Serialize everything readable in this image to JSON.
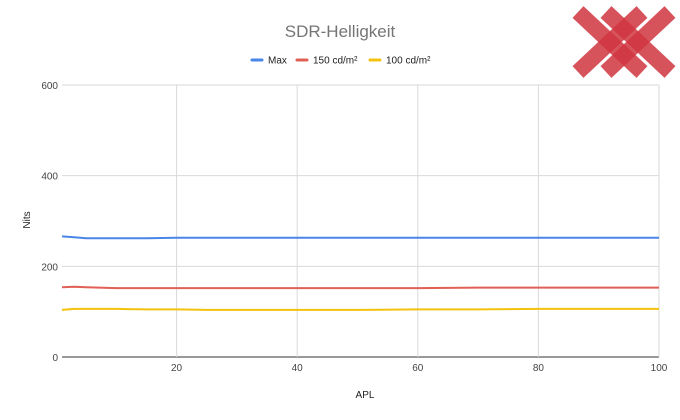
{
  "chart_data": {
    "type": "line",
    "title": "SDR-Helligkeit",
    "xlabel": "APL",
    "ylabel": "Nits",
    "xlim": [
      1,
      100
    ],
    "ylim": [
      0,
      600
    ],
    "x_ticks": [
      20,
      40,
      60,
      80,
      100
    ],
    "y_ticks": [
      0,
      200,
      400,
      600
    ],
    "grid": true,
    "legend_position": "top",
    "x": [
      1,
      3,
      5,
      10,
      15,
      20,
      25,
      30,
      40,
      50,
      60,
      70,
      80,
      90,
      100
    ],
    "series": [
      {
        "name": "Max",
        "color": "#4a86e8",
        "values": [
          266,
          264,
          262,
          262,
          262,
          263,
          263,
          263,
          263,
          263,
          263,
          263,
          263,
          263,
          263
        ]
      },
      {
        "name": "150 cd/m²",
        "color": "#e06055",
        "values": [
          154,
          155,
          154,
          152,
          152,
          152,
          152,
          152,
          152,
          152,
          152,
          153,
          153,
          153,
          153
        ]
      },
      {
        "name": "100 cd/m²",
        "color": "#f4c20d",
        "values": [
          104,
          106,
          106,
          106,
          105,
          105,
          104,
          104,
          104,
          104,
          105,
          105,
          106,
          106,
          106
        ]
      }
    ]
  },
  "logo": {
    "name": "xx-logo",
    "color": "#d0353f"
  }
}
